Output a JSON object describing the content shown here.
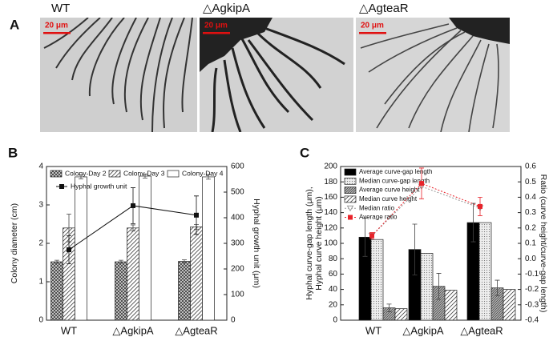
{
  "panel_labels": [
    "A",
    "B",
    "C"
  ],
  "images": [
    {
      "label": "WT",
      "scale_bar": "20 μm"
    },
    {
      "label": "△AgkipA",
      "scale_bar": "20 μm"
    },
    {
      "label": "△AgteaR",
      "scale_bar": "20 μm"
    }
  ],
  "chart_data": [
    {
      "type": "bar",
      "categories": [
        "WT",
        "△AgkipA",
        "△AgteaR"
      ],
      "y_label": "Colony diameter (cm)",
      "y2_label": "Hyphal growth unit (μm)",
      "ylim": [
        0,
        4
      ],
      "yticks": [
        0,
        1,
        2,
        3,
        4
      ],
      "y2lim": [
        0,
        600
      ],
      "y2ticks": [
        0,
        100,
        200,
        300,
        400,
        500,
        600
      ],
      "series": [
        {
          "name": "Colony-Day 2",
          "type": "bar",
          "color": "#555555",
          "hatch": "cross",
          "values": [
            1.52,
            1.52,
            1.53
          ],
          "errors": [
            0.04,
            0.04,
            0.04
          ]
        },
        {
          "name": "Colony-Day 3",
          "type": "bar",
          "color": "#555555",
          "hatch": "diag",
          "values": [
            2.4,
            2.4,
            2.43
          ],
          "errors": [
            0.36,
            0.08,
            0.06
          ]
        },
        {
          "name": "Colony-Day 4",
          "type": "bar",
          "color": "#555555",
          "hatch": "none",
          "values": [
            3.73,
            3.75,
            3.73
          ],
          "errors": [
            0.05,
            0.05,
            0.06
          ]
        },
        {
          "name": "Hyphal growth unit",
          "type": "line",
          "axis": "y2",
          "color": "#111111",
          "marker": "square",
          "values": [
            275,
            447,
            410
          ],
          "errors": [
            55,
            70,
            75
          ]
        }
      ]
    },
    {
      "type": "bar",
      "categories": [
        "WT",
        "△AgkipA",
        "△AgteaR"
      ],
      "y_label": [
        "Hyphal curve-gap length (μm),",
        "Hyphal curve height (μm)"
      ],
      "y2_label": "Ratio (curve height/curve-gap length)",
      "ylim": [
        0,
        200
      ],
      "yticks": [
        0,
        20,
        40,
        60,
        80,
        100,
        120,
        140,
        160,
        180,
        200
      ],
      "y2lim": [
        -0.4,
        0.6
      ],
      "y2ticks": [
        -0.4,
        -0.3,
        -0.2,
        -0.1,
        {
          "value": 0,
          "label": "0.0"
        },
        0.1,
        0.2,
        0.3,
        0.4,
        0.5,
        0.6
      ],
      "series": [
        {
          "name": "Average curve-gap length",
          "type": "bar",
          "color": "#000000",
          "hatch": "solid",
          "values": [
            108,
            92,
            127
          ],
          "errors": [
            25,
            33,
            25
          ]
        },
        {
          "name": "Median curve-gap length",
          "type": "bar",
          "color": "#888888",
          "hatch": "dots",
          "values": [
            105,
            87,
            127
          ]
        },
        {
          "name": "Average curve height",
          "type": "bar",
          "color": "#777777",
          "hatch": "dense",
          "values": [
            16,
            44,
            42
          ],
          "errors": [
            5,
            17,
            10
          ]
        },
        {
          "name": "Median curve height",
          "type": "bar",
          "color": "#777777",
          "hatch": "diag",
          "values": [
            15,
            39,
            40
          ]
        },
        {
          "name": "Median ratio",
          "type": "line",
          "axis": "y2",
          "color": "#999999",
          "marker": "triangle",
          "dash": true,
          "values": [
            0.15,
            0.47,
            0.33
          ]
        },
        {
          "name": "Average ratio",
          "type": "line",
          "axis": "y2",
          "color": "#e8232a",
          "marker": "square",
          "dash": true,
          "values": [
            0.15,
            0.49,
            0.34
          ],
          "errors": [
            0.02,
            0.1,
            0.06
          ]
        }
      ]
    }
  ]
}
